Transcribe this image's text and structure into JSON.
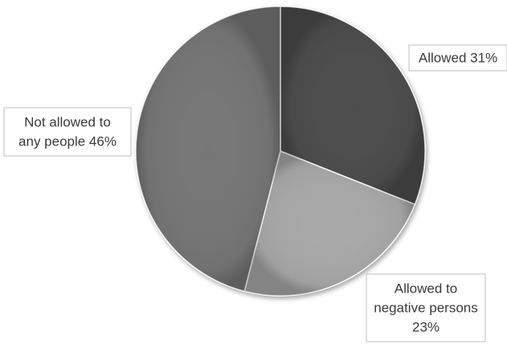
{
  "chart_data": {
    "type": "pie",
    "title": "",
    "slices": [
      {
        "label": "Allowed",
        "value": 31,
        "text_lines": [
          "Allowed 31%"
        ],
        "color": "#4e4e4e"
      },
      {
        "label": "Allowed to negative persons",
        "value": 23,
        "text_lines": [
          "Allowed to",
          "negative persons",
          "23%"
        ],
        "color": "#a9a9a9"
      },
      {
        "label": "Not allowed to any people",
        "value": 46,
        "text_lines": [
          "Not allowed to",
          "any people 46%"
        ],
        "color": "#777777"
      }
    ],
    "legend": "none",
    "data_labels": "outside, boxed"
  }
}
